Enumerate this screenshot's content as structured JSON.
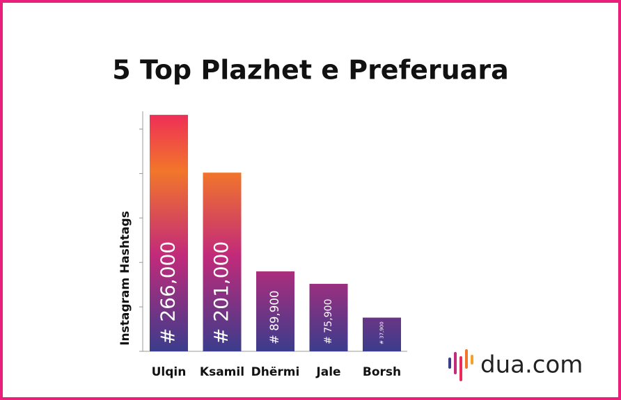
{
  "chart_data": {
    "type": "bar",
    "title": "5 Top Plazhet e Preferuara",
    "y_label": "Instagram Hashtags",
    "categories": [
      "Ulqin",
      "Ksamil",
      "Dhërmi",
      "Jale",
      "Borsh"
    ],
    "values": [
      266000,
      201000,
      89900,
      75900,
      37900
    ],
    "value_labels": [
      "# 266,000",
      "# 201,000",
      "# 89,900",
      "# 75,900",
      "# 37,900"
    ],
    "gradient": [
      "#ee2a5a",
      "#f2762a",
      "#c22a7a",
      "#3b3c8c"
    ],
    "ylim": [
      0,
      270000
    ],
    "yticks": [
      0,
      50000,
      100000,
      150000,
      200000,
      250000
    ],
    "logo": "dua.com"
  }
}
